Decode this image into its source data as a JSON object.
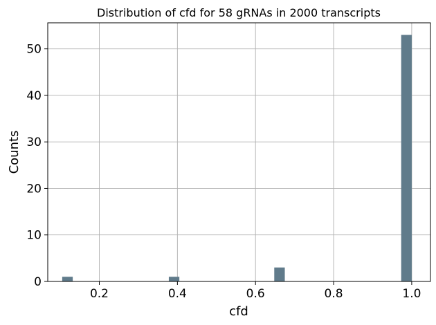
{
  "chart_data": {
    "type": "bar",
    "title": "Distribution of cfd for 58 gRNAs in 2000 transcripts",
    "xlabel": "cfd",
    "ylabel": "Counts",
    "xlim": [
      0.068,
      1.048
    ],
    "ylim": [
      0,
      55.6
    ],
    "x_ticks": [
      0.2,
      0.4,
      0.6,
      0.8,
      1.0
    ],
    "x_tick_labels": [
      "0.2",
      "0.4",
      "0.6",
      "0.8",
      "1.0"
    ],
    "y_ticks": [
      0,
      10,
      20,
      30,
      40,
      50
    ],
    "y_tick_labels": [
      "0",
      "10",
      "20",
      "30",
      "40",
      "50"
    ],
    "grid": true,
    "bar_color": "#607b8b",
    "bins": [
      {
        "x0": 0.105,
        "x1": 0.132,
        "count": 1
      },
      {
        "x0": 0.378,
        "x1": 0.405,
        "count": 1
      },
      {
        "x0": 0.648,
        "x1": 0.675,
        "count": 3
      },
      {
        "x0": 0.973,
        "x1": 1.0,
        "count": 53
      }
    ]
  }
}
